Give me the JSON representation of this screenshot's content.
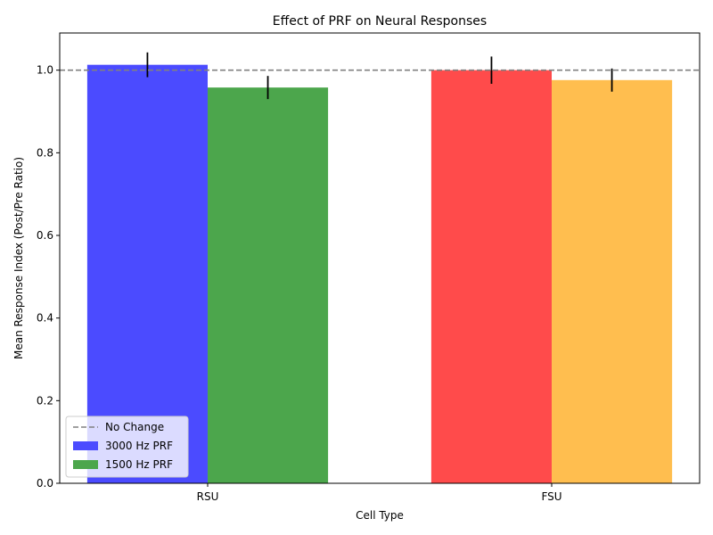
{
  "chart_data": {
    "type": "bar",
    "title": "Effect of PRF on Neural Responses",
    "xlabel": "Cell Type",
    "ylabel": "Mean Response Index (Post/Pre Ratio)",
    "categories": [
      "RSU",
      "FSU"
    ],
    "ylim": [
      0.0,
      1.09
    ],
    "yticks": [
      0.0,
      0.2,
      0.4,
      0.6,
      0.8,
      1.0
    ],
    "ytick_labels": [
      "0.0",
      "0.2",
      "0.4",
      "0.6",
      "0.8",
      "1.0"
    ],
    "grid": false,
    "bars": [
      {
        "category": "RSU",
        "series": "3000 Hz PRF",
        "value": 1.013,
        "error": 0.03,
        "color": "#4b4bff"
      },
      {
        "category": "RSU",
        "series": "1500 Hz PRF",
        "value": 0.958,
        "error": 0.028,
        "color": "#4ca64c"
      },
      {
        "category": "FSU",
        "series": "",
        "value": 1.0,
        "error": 0.033,
        "color": "#ff4b4b"
      },
      {
        "category": "FSU",
        "series": "",
        "value": 0.976,
        "error": 0.028,
        "color": "#ffbe4f"
      }
    ],
    "reference_line": {
      "value": 1.0,
      "label": "No Change",
      "color": "#808080"
    },
    "legend": {
      "placement": "lower-left",
      "entries": [
        {
          "label": "No Change",
          "kind": "line",
          "color": "#808080"
        },
        {
          "label": "3000 Hz PRF",
          "kind": "patch",
          "color": "#4b4bff"
        },
        {
          "label": "1500 Hz PRF",
          "kind": "patch",
          "color": "#4ca64c"
        }
      ]
    }
  }
}
